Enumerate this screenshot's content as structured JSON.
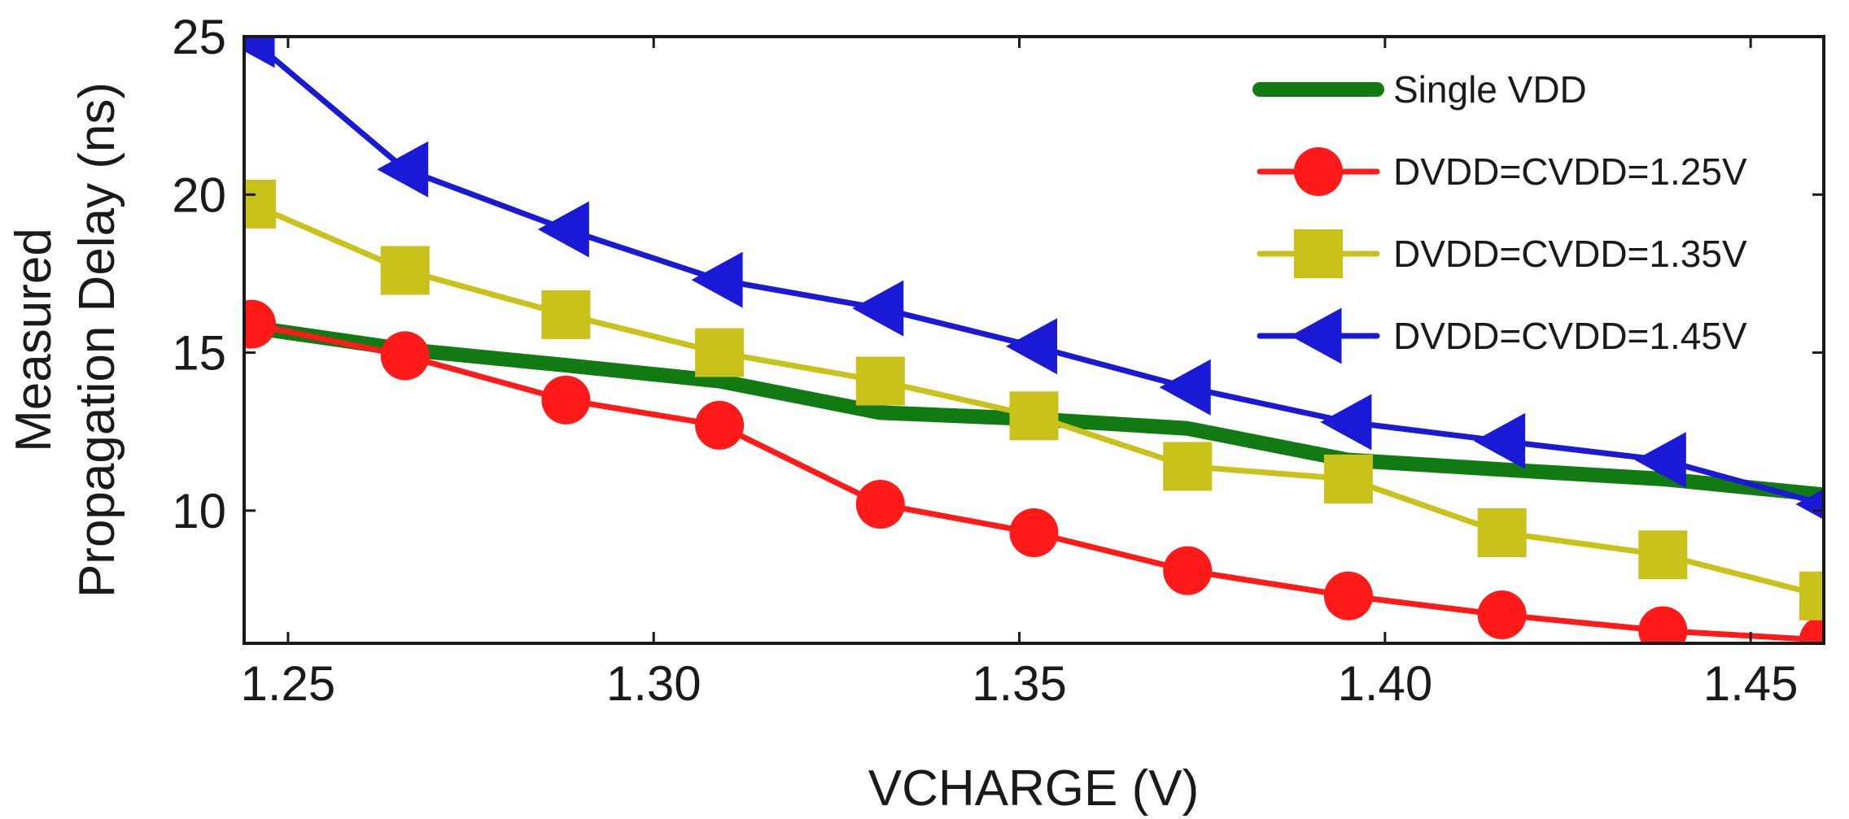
{
  "chart_data": {
    "type": "line",
    "title": "",
    "xlabel": "VCHARGE (V)",
    "ylabel_line1": "Measured",
    "ylabel_line2": "Propagation Delay (ns)",
    "xlim": [
      1.244,
      1.46
    ],
    "ylim": [
      5.8,
      25
    ],
    "xticks": [
      1.25,
      1.3,
      1.35,
      1.4,
      1.45
    ],
    "xtick_labels": [
      "1.25",
      "1.30",
      "1.35",
      "1.40",
      "1.45"
    ],
    "yticks": [
      10,
      15,
      20,
      25
    ],
    "ytick_labels": [
      "10",
      "15",
      "20",
      "25"
    ],
    "grid": false,
    "legend_position": "top-right",
    "x": [
      1.245,
      1.266,
      1.288,
      1.309,
      1.331,
      1.352,
      1.373,
      1.395,
      1.416,
      1.438,
      1.46
    ],
    "series": [
      {
        "name": "Single VDD",
        "color": "#127a12",
        "marker": "none",
        "values": [
          15.8,
          15.1,
          14.6,
          14.1,
          13.1,
          12.9,
          12.6,
          11.6,
          11.3,
          11.0,
          10.5
        ]
      },
      {
        "name": "DVDD=CVDD=1.25V",
        "color": "#ff1a1a",
        "marker": "circle",
        "values": [
          15.9,
          14.9,
          13.5,
          12.7,
          10.2,
          9.3,
          8.1,
          7.3,
          6.7,
          6.2,
          5.9
        ]
      },
      {
        "name": "DVDD=CVDD=1.35V",
        "color": "#c8c21a",
        "marker": "square",
        "values": [
          19.7,
          17.6,
          16.2,
          15.0,
          14.1,
          13.0,
          11.4,
          11.0,
          9.3,
          8.6,
          7.3
        ]
      },
      {
        "name": "DVDD=CVDD=1.45V",
        "color": "#1a1ad6",
        "marker": "triangle-left",
        "values": [
          24.9,
          20.8,
          18.9,
          17.3,
          16.4,
          15.2,
          13.9,
          12.8,
          12.2,
          11.6,
          10.2
        ]
      }
    ]
  }
}
